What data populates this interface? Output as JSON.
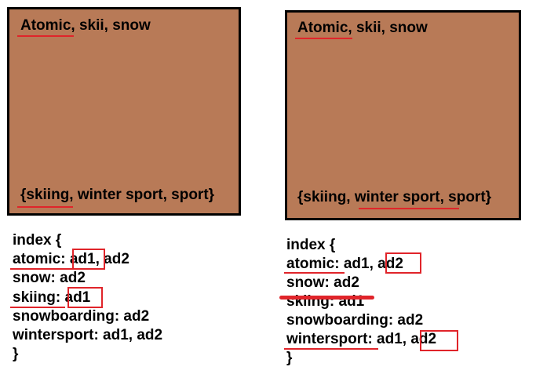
{
  "left_panel": {
    "ad_keywords": "Atomic, skii, snow",
    "ad_categories": "{skiing, winter sport, sport}",
    "index": {
      "open": "index {",
      "rows": [
        "atomic: ad1, ad2",
        "snow: ad2",
        "skiing: ad1",
        "snowboarding: ad2",
        "wintersport: ad1, ad2"
      ],
      "close": "}"
    }
  },
  "right_panel": {
    "ad_keywords": "Atomic, skii, snow",
    "ad_categories": "{skiing, winter sport, sport}",
    "index": {
      "open": "index {",
      "rows": [
        "atomic: ad1, ad2",
        "snow: ad2",
        "skiing: ad1",
        "snowboarding: ad2",
        "wintersport: ad1, ad2"
      ],
      "close": "}"
    }
  },
  "colors": {
    "ad_background": "#b87a57",
    "ad_border": "#000000",
    "highlight": "#e0242a"
  }
}
